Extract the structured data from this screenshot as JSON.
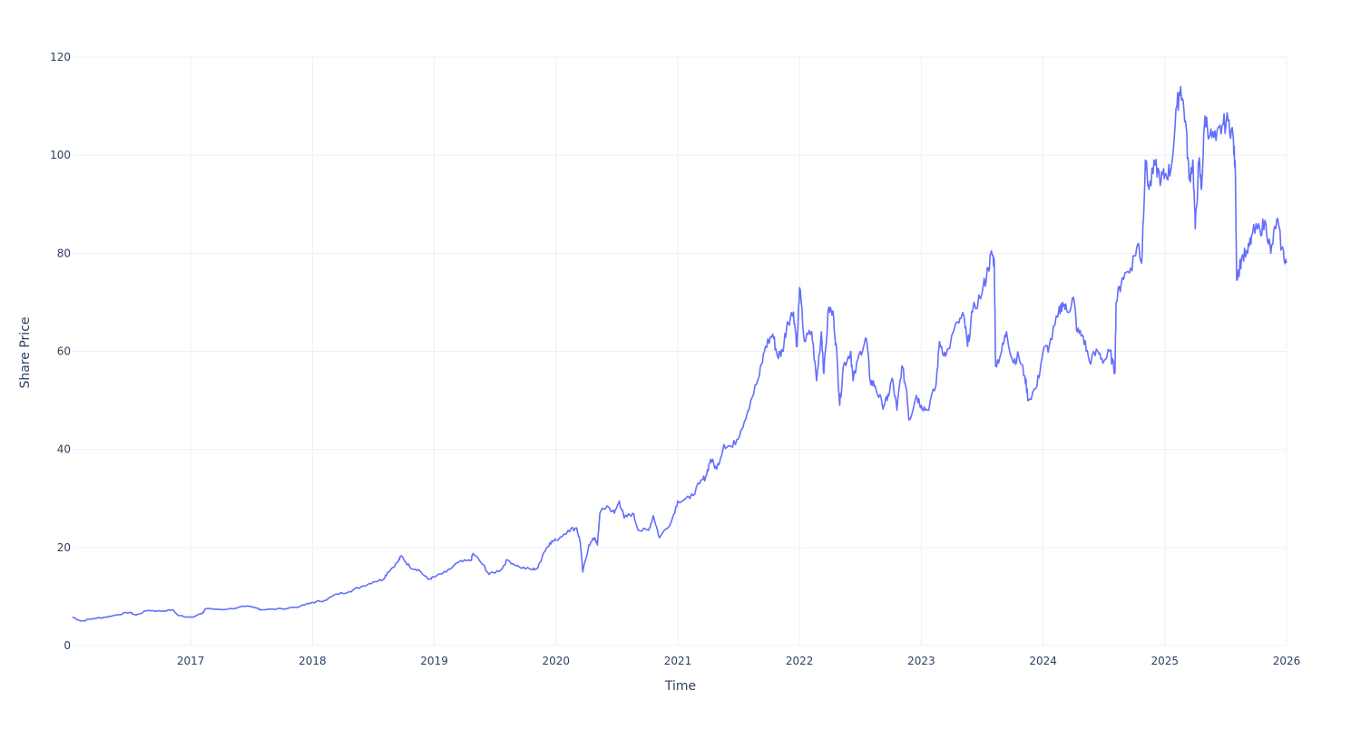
{
  "chart_data": {
    "type": "line",
    "title": "",
    "xlabel": "Time",
    "ylabel": "Share Price",
    "xlim": [
      2016.03,
      2026.0
    ],
    "ylim": [
      0,
      120
    ],
    "grid": true,
    "line_color": "#636efa",
    "x_ticks": [
      {
        "value": 2017,
        "label": "2017"
      },
      {
        "value": 2018,
        "label": "2018"
      },
      {
        "value": 2019,
        "label": "2019"
      },
      {
        "value": 2020,
        "label": "2020"
      },
      {
        "value": 2021,
        "label": "2021"
      },
      {
        "value": 2022,
        "label": "2022"
      },
      {
        "value": 2023,
        "label": "2023"
      },
      {
        "value": 2024,
        "label": "2024"
      },
      {
        "value": 2025,
        "label": "2025"
      },
      {
        "value": 2026,
        "label": "2026"
      }
    ],
    "y_ticks": [
      {
        "value": 0,
        "label": "0"
      },
      {
        "value": 20,
        "label": "20"
      },
      {
        "value": 40,
        "label": "40"
      },
      {
        "value": 60,
        "label": "60"
      },
      {
        "value": 80,
        "label": "80"
      },
      {
        "value": 100,
        "label": "100"
      },
      {
        "value": 120,
        "label": "120"
      }
    ],
    "series": [
      {
        "name": "Share Price",
        "points": [
          [
            2016.03,
            5.8
          ],
          [
            2016.1,
            5.0
          ],
          [
            2016.2,
            5.5
          ],
          [
            2016.3,
            5.8
          ],
          [
            2016.4,
            6.3
          ],
          [
            2016.5,
            6.8
          ],
          [
            2016.55,
            6.2
          ],
          [
            2016.65,
            7.2
          ],
          [
            2016.75,
            7.0
          ],
          [
            2016.85,
            7.3
          ],
          [
            2016.9,
            6.1
          ],
          [
            2017.0,
            5.8
          ],
          [
            2017.1,
            6.6
          ],
          [
            2017.12,
            7.5
          ],
          [
            2017.3,
            7.4
          ],
          [
            2017.45,
            8.0
          ],
          [
            2017.55,
            7.6
          ],
          [
            2017.58,
            7.3
          ],
          [
            2017.75,
            7.5
          ],
          [
            2017.9,
            8.0
          ],
          [
            2018.0,
            8.8
          ],
          [
            2018.1,
            9.2
          ],
          [
            2018.2,
            10.5
          ],
          [
            2018.3,
            11.0
          ],
          [
            2018.4,
            12.0
          ],
          [
            2018.5,
            13.0
          ],
          [
            2018.58,
            13.5
          ],
          [
            2018.62,
            15
          ],
          [
            2018.7,
            17
          ],
          [
            2018.73,
            18.3
          ],
          [
            2018.8,
            16
          ],
          [
            2018.87,
            15.5
          ],
          [
            2018.95,
            13.5
          ],
          [
            2019.0,
            14
          ],
          [
            2019.1,
            15
          ],
          [
            2019.2,
            17
          ],
          [
            2019.3,
            17.3
          ],
          [
            2019.32,
            18.8
          ],
          [
            2019.4,
            16.5
          ],
          [
            2019.45,
            14.5
          ],
          [
            2019.55,
            15.5
          ],
          [
            2019.6,
            17.5
          ],
          [
            2019.7,
            16
          ],
          [
            2019.8,
            15.5
          ],
          [
            2019.85,
            15.8
          ],
          [
            2019.9,
            19
          ],
          [
            2019.95,
            21
          ],
          [
            2020.0,
            21.5
          ],
          [
            2020.1,
            23.5
          ],
          [
            2020.17,
            24
          ],
          [
            2020.2,
            21
          ],
          [
            2020.22,
            15
          ],
          [
            2020.27,
            20.5
          ],
          [
            2020.32,
            22
          ],
          [
            2020.34,
            20.5
          ],
          [
            2020.36,
            27
          ],
          [
            2020.42,
            28.5
          ],
          [
            2020.48,
            27
          ],
          [
            2020.52,
            29.5
          ],
          [
            2020.56,
            26
          ],
          [
            2020.63,
            27
          ],
          [
            2020.68,
            23.5
          ],
          [
            2020.76,
            23.5
          ],
          [
            2020.8,
            26.5
          ],
          [
            2020.85,
            22
          ],
          [
            2020.95,
            25.5
          ],
          [
            2021.0,
            29.5
          ],
          [
            2021.1,
            30
          ],
          [
            2021.18,
            33
          ],
          [
            2021.23,
            34.5
          ],
          [
            2021.27,
            38
          ],
          [
            2021.32,
            36
          ],
          [
            2021.38,
            41
          ],
          [
            2021.45,
            40.5
          ],
          [
            2021.52,
            44
          ],
          [
            2021.6,
            50
          ],
          [
            2021.67,
            55
          ],
          [
            2021.72,
            61
          ],
          [
            2021.78,
            63.5
          ],
          [
            2021.82,
            59
          ],
          [
            2021.86,
            60
          ],
          [
            2021.9,
            66
          ],
          [
            2021.95,
            68
          ],
          [
            2021.98,
            61
          ],
          [
            2022.0,
            73
          ],
          [
            2022.04,
            62
          ],
          [
            2022.1,
            64
          ],
          [
            2022.14,
            54
          ],
          [
            2022.18,
            64
          ],
          [
            2022.2,
            55.5
          ],
          [
            2022.24,
            69
          ],
          [
            2022.28,
            67
          ],
          [
            2022.31,
            58
          ],
          [
            2022.33,
            49
          ],
          [
            2022.36,
            57
          ],
          [
            2022.42,
            60
          ],
          [
            2022.44,
            54
          ],
          [
            2022.5,
            60
          ],
          [
            2022.55,
            62.5
          ],
          [
            2022.58,
            54
          ],
          [
            2022.62,
            53
          ],
          [
            2022.68,
            49
          ],
          [
            2022.72,
            50
          ],
          [
            2022.76,
            54.5
          ],
          [
            2022.8,
            48
          ],
          [
            2022.84,
            57
          ],
          [
            2022.88,
            52
          ],
          [
            2022.9,
            46
          ],
          [
            2022.96,
            51
          ],
          [
            2023.0,
            49
          ],
          [
            2023.05,
            48
          ],
          [
            2023.12,
            53
          ],
          [
            2023.15,
            62
          ],
          [
            2023.2,
            59
          ],
          [
            2023.3,
            66
          ],
          [
            2023.35,
            67
          ],
          [
            2023.38,
            61
          ],
          [
            2023.42,
            68
          ],
          [
            2023.5,
            72
          ],
          [
            2023.55,
            77
          ],
          [
            2023.58,
            80
          ],
          [
            2023.6,
            78
          ],
          [
            2023.61,
            57
          ],
          [
            2023.66,
            60
          ],
          [
            2023.7,
            64
          ],
          [
            2023.75,
            58
          ],
          [
            2023.8,
            59
          ],
          [
            2023.85,
            55
          ],
          [
            2023.88,
            50
          ],
          [
            2023.95,
            53
          ],
          [
            2024.0,
            60
          ],
          [
            2024.05,
            61
          ],
          [
            2024.12,
            67
          ],
          [
            2024.16,
            70
          ],
          [
            2024.2,
            68
          ],
          [
            2024.25,
            71
          ],
          [
            2024.28,
            64
          ],
          [
            2024.33,
            63
          ],
          [
            2024.38,
            58
          ],
          [
            2024.45,
            60
          ],
          [
            2024.5,
            58
          ],
          [
            2024.55,
            60
          ],
          [
            2024.59,
            55.5
          ],
          [
            2024.6,
            70
          ],
          [
            2024.65,
            75
          ],
          [
            2024.72,
            77
          ],
          [
            2024.78,
            82
          ],
          [
            2024.81,
            78
          ],
          [
            2024.84,
            99
          ],
          [
            2024.87,
            93
          ],
          [
            2024.92,
            98
          ],
          [
            2024.97,
            95
          ],
          [
            2025.0,
            96
          ],
          [
            2025.05,
            97
          ],
          [
            2025.1,
            110
          ],
          [
            2025.13,
            114
          ],
          [
            2025.17,
            107
          ],
          [
            2025.2,
            95
          ],
          [
            2025.23,
            99
          ],
          [
            2025.25,
            85
          ],
          [
            2025.28,
            99
          ],
          [
            2025.3,
            93
          ],
          [
            2025.33,
            108
          ],
          [
            2025.37,
            104
          ],
          [
            2025.42,
            103
          ],
          [
            2025.47,
            106
          ],
          [
            2025.52,
            107
          ],
          [
            2025.56,
            104
          ],
          [
            2025.58,
            96
          ],
          [
            2025.59,
            74.5
          ],
          [
            2025.63,
            79
          ],
          [
            2025.68,
            80
          ],
          [
            2025.72,
            84
          ],
          [
            2025.78,
            85
          ],
          [
            2025.83,
            86
          ],
          [
            2025.87,
            80
          ],
          [
            2025.92,
            87
          ],
          [
            2025.96,
            81
          ],
          [
            2026.0,
            78
          ]
        ]
      }
    ]
  }
}
